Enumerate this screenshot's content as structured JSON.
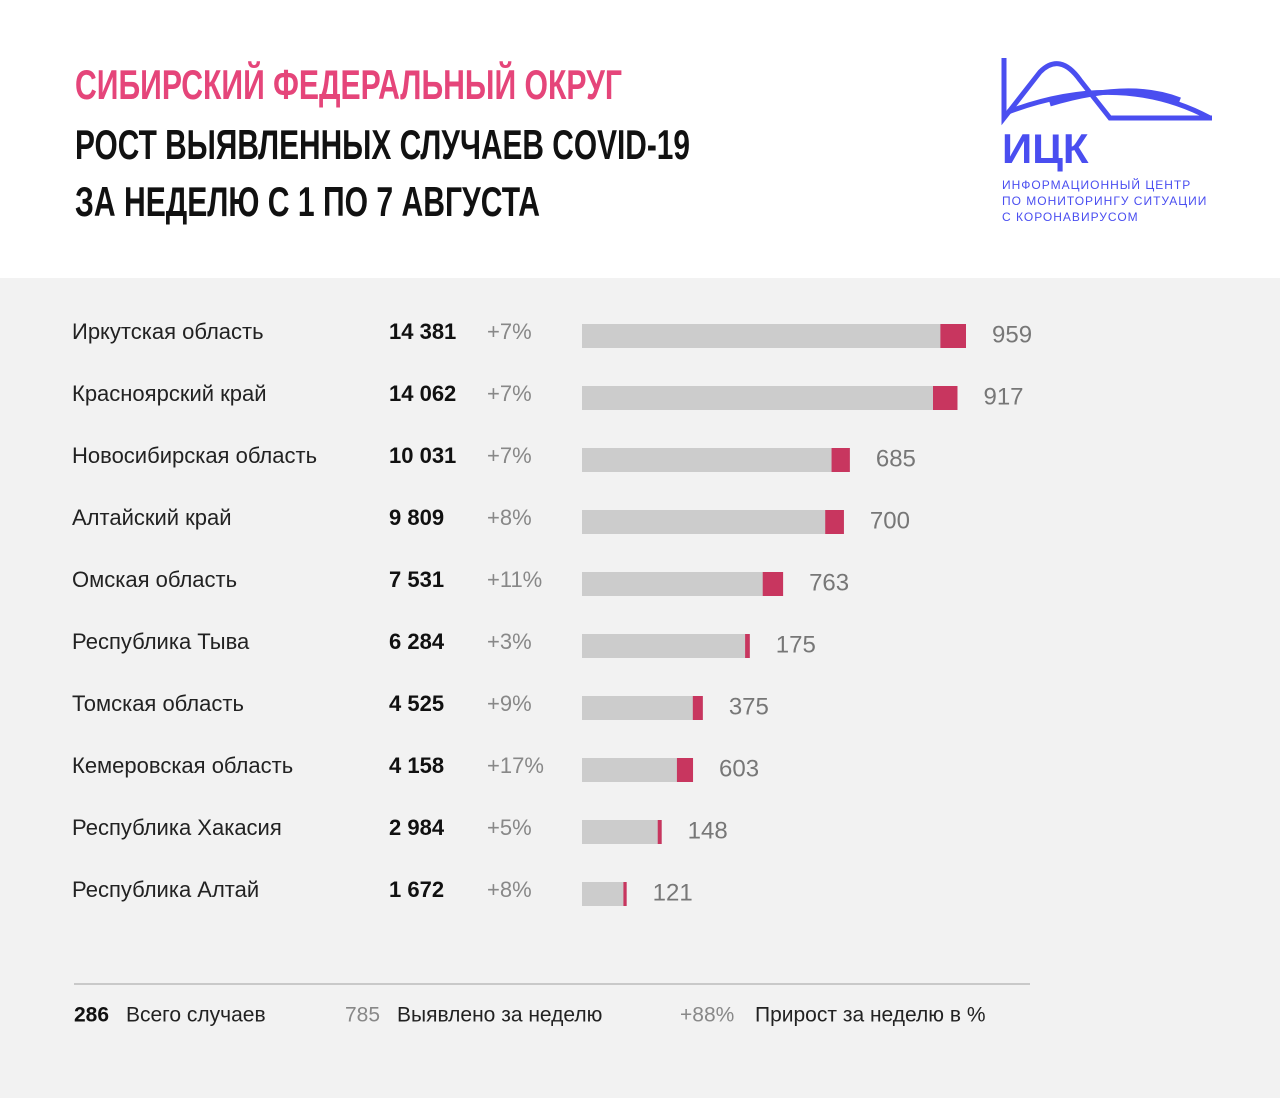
{
  "chart_data": {
    "type": "bar",
    "supertitle": "СИБИРСКИЙ ФЕДЕРАЛЬНЫЙ ОКРУГ",
    "title": [
      "РОСТ ВЫЯВЛЕННЫХ СЛУЧАЕВ COVID-19",
      "ЗА НЕДЕЛЮ С 1 ПО 7 АВГУСТА"
    ],
    "logo": {
      "name": "ИЦК",
      "lines": [
        "ИНФОРМАЦИОННЫЙ ЦЕНТР",
        "ПО МОНИТОРИНГУ СИТУАЦИИ",
        "С КОРОНАВИРУСОМ"
      ]
    },
    "categories": [
      "Иркутская область",
      "Красноярский край",
      "Новосибирская область",
      "Алтайский край",
      "Омская область",
      "Республика Тыва",
      "Томская область",
      "Кемеровская область",
      "Республика Хакасия",
      "Республика Алтай"
    ],
    "series": [
      {
        "name": "Всего случаев",
        "color": "#cccccc",
        "values": [
          14381,
          14062,
          10031,
          9809,
          7531,
          6284,
          4525,
          4158,
          2984,
          1672
        ],
        "value_labels": [
          "14 381",
          "14 062",
          "10 031",
          "9 809",
          "7 531",
          "6 284",
          "4 525",
          "4 158",
          "2 984",
          "1 672"
        ]
      },
      {
        "name": "Выявлено за неделю",
        "color": "#c8365f",
        "values": [
          959,
          917,
          685,
          700,
          763,
          175,
          375,
          603,
          148,
          121
        ]
      },
      {
        "name": "Прирост за неделю в %",
        "values": [
          7,
          7,
          7,
          8,
          11,
          3,
          9,
          17,
          5,
          8
        ],
        "value_labels": [
          "+7%",
          "+7%",
          "+7%",
          "+8%",
          "+11%",
          "+3%",
          "+9%",
          "+17%",
          "+5%",
          "+8%"
        ]
      }
    ],
    "legend_samples": [
      "286",
      "785",
      "+88%"
    ]
  }
}
